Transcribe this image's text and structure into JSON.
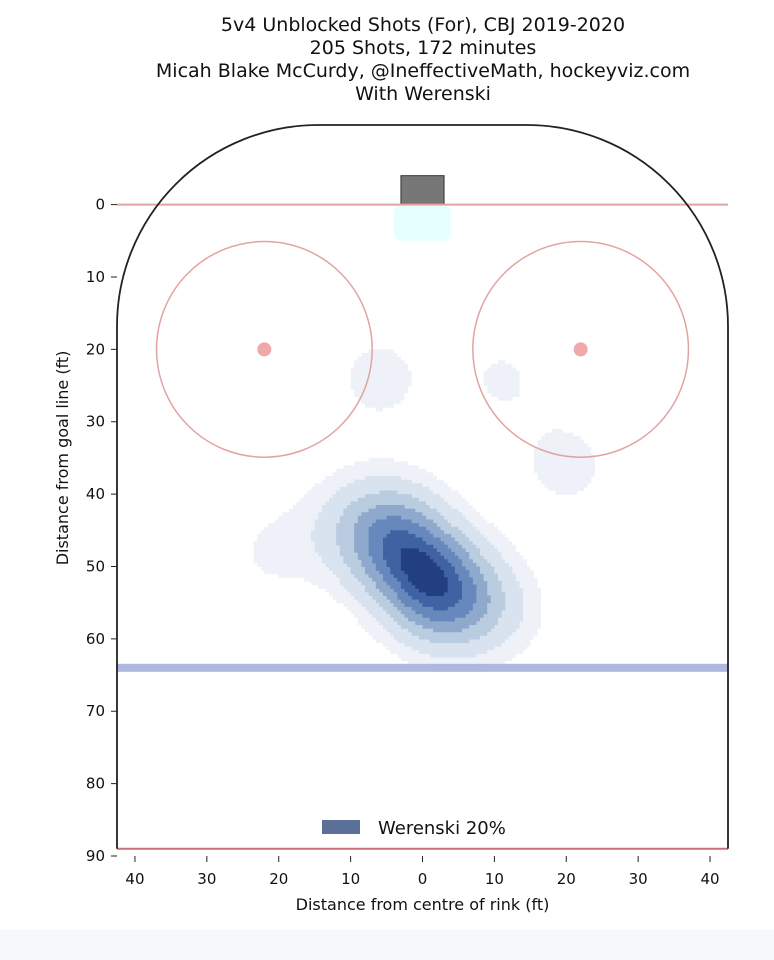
{
  "title_lines": [
    "5v4 Unblocked Shots (For), CBJ 2019-2020",
    "205 Shots, 172 minutes",
    "Micah Blake McCurdy, @IneffectiveMath, hockeyviz.com",
    "With Werenski"
  ],
  "chart_data": {
    "type": "heatmap",
    "xlabel": "Distance from centre of rink (ft)",
    "ylabel": "Distance from goal line (ft)",
    "xlim": [
      -42.5,
      42.5
    ],
    "ylim": [
      90,
      -11
    ],
    "x_axis_reversed_labels": true,
    "x_tick_values": [
      -40,
      -30,
      -20,
      -10,
      0,
      10,
      20,
      30,
      40
    ],
    "x_tick_labels": [
      "40",
      "30",
      "20",
      "10",
      "0",
      "10",
      "20",
      "30",
      "40"
    ],
    "y_tick_values": [
      0,
      10,
      20,
      30,
      40,
      50,
      60,
      70,
      80,
      90
    ],
    "y_tick_labels": [
      "0",
      "10",
      "20",
      "30",
      "40",
      "50",
      "60",
      "70",
      "80",
      "90"
    ],
    "grid": false,
    "legend": {
      "placement": "bottom-center",
      "entries": [
        {
          "label": "Werenski 20%",
          "color": "#5b7099"
        }
      ]
    },
    "rink": {
      "goal_line_y": 0,
      "blue_line_y": 64,
      "far_line_y": 89,
      "faceoff_circles": [
        {
          "x": -22,
          "y": 20,
          "radius": 15
        },
        {
          "x": 22,
          "y": 20,
          "radius": 15
        }
      ],
      "net": {
        "x": 0,
        "y": -2,
        "width": 6,
        "depth": 4
      },
      "crease": {
        "x": 0,
        "y": 3,
        "width": 8,
        "depth": 5
      }
    },
    "contour_levels": [
      0.1,
      0.2,
      0.35,
      0.5,
      0.65,
      0.8,
      0.92
    ],
    "density_hotspots": [
      {
        "x": -4,
        "y": 46,
        "weight": 1.0
      },
      {
        "x": 3,
        "y": 54,
        "weight": 1.0
      },
      {
        "x": 0,
        "y": 51,
        "weight": 0.6
      },
      {
        "x": 10,
        "y": 56,
        "weight": 0.35
      },
      {
        "x": -10,
        "y": 44,
        "weight": 0.3
      },
      {
        "x": -6,
        "y": 24,
        "weight": 0.25
      },
      {
        "x": 11,
        "y": 24,
        "weight": 0.2
      },
      {
        "x": 20,
        "y": 36,
        "weight": 0.25
      },
      {
        "x": -21,
        "y": 48,
        "weight": 0.2
      },
      {
        "x": -26,
        "y": 27,
        "weight": 0.12
      }
    ],
    "colors": {
      "contour_scale": [
        "#eef2f8",
        "#d8e3ef",
        "#b9cce0",
        "#8ea9cc",
        "#6788bd",
        "#3f62a3",
        "#223f7f"
      ],
      "lines": "#e3a3a3",
      "faceoff_dot": "#f0a8a8",
      "blue_line": "#aeb7dd",
      "far_line": "#c7707a",
      "net": "#777777",
      "crease": "#e6ffff",
      "boards": "#222222"
    }
  }
}
